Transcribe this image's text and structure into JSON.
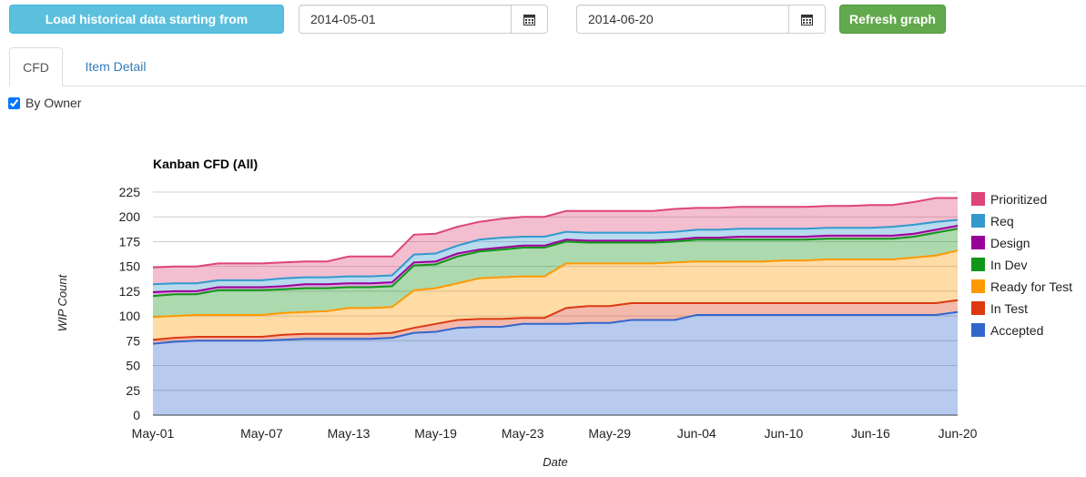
{
  "controls": {
    "load_button": "Load historical data starting from",
    "start_date": "2014-05-01",
    "end_date": "2014-06-20",
    "refresh_button": "Refresh graph"
  },
  "tabs": [
    {
      "label": "CFD",
      "active": true
    },
    {
      "label": "Item Detail",
      "active": false
    }
  ],
  "by_owner": {
    "label": "By Owner",
    "checked": true
  },
  "chart_data": {
    "type": "area",
    "stacked": true,
    "title": "Kanban CFD (All)",
    "xlabel": "Date",
    "ylabel": "WIP Count",
    "ylim": [
      0,
      225
    ],
    "yticks": [
      0,
      25,
      50,
      75,
      100,
      125,
      150,
      175,
      200,
      225
    ],
    "xticks": [
      "May-01",
      "May-07",
      "May-13",
      "May-19",
      "May-23",
      "May-29",
      "Jun-04",
      "Jun-10",
      "Jun-16",
      "Jun-20"
    ],
    "grid": true,
    "legend_position": "right",
    "x": [
      "May-01",
      "May-02",
      "May-03",
      "May-05",
      "May-06",
      "May-07",
      "May-08",
      "May-09",
      "May-12",
      "May-13",
      "May-14",
      "May-15",
      "May-16",
      "May-19",
      "May-20",
      "May-21",
      "May-22",
      "May-23",
      "May-26",
      "May-27",
      "May-28",
      "May-29",
      "May-30",
      "Jun-02",
      "Jun-03",
      "Jun-04",
      "Jun-05",
      "Jun-06",
      "Jun-09",
      "Jun-10",
      "Jun-11",
      "Jun-12",
      "Jun-13",
      "Jun-16",
      "Jun-17",
      "Jun-18",
      "Jun-19",
      "Jun-20"
    ],
    "series": [
      {
        "name": "Accepted",
        "color": "#3366cc",
        "values": [
          72,
          74,
          75,
          75,
          75,
          75,
          76,
          77,
          77,
          77,
          77,
          78,
          83,
          84,
          88,
          89,
          89,
          92,
          92,
          92,
          93,
          93,
          96,
          96,
          96,
          101,
          101,
          101,
          101,
          101,
          101,
          101,
          101,
          101,
          101,
          101,
          101,
          104
        ]
      },
      {
        "name": "In Test",
        "color": "#dc3912",
        "values": [
          76,
          78,
          79,
          79,
          79,
          79,
          81,
          82,
          82,
          82,
          82,
          83,
          88,
          92,
          96,
          97,
          97,
          98,
          98,
          108,
          110,
          110,
          113,
          113,
          113,
          113,
          113,
          113,
          113,
          113,
          113,
          113,
          113,
          113,
          113,
          113,
          113,
          116
        ]
      },
      {
        "name": "Ready for Test",
        "color": "#ff9900",
        "values": [
          99,
          100,
          101,
          101,
          101,
          101,
          103,
          104,
          105,
          108,
          108,
          109,
          126,
          128,
          133,
          138,
          139,
          140,
          140,
          153,
          153,
          153,
          153,
          153,
          154,
          155,
          155,
          155,
          155,
          156,
          156,
          157,
          157,
          157,
          157,
          159,
          161,
          166
        ]
      },
      {
        "name": "In Dev",
        "color": "#109618",
        "values": [
          120,
          122,
          122,
          126,
          126,
          126,
          127,
          128,
          128,
          129,
          129,
          130,
          151,
          152,
          160,
          165,
          167,
          169,
          169,
          175,
          174,
          174,
          174,
          174,
          175,
          177,
          177,
          177,
          177,
          177,
          177,
          178,
          178,
          178,
          178,
          180,
          184,
          188
        ]
      },
      {
        "name": "Design",
        "color": "#990099",
        "values": [
          124,
          125,
          125,
          129,
          129,
          129,
          130,
          132,
          132,
          133,
          133,
          134,
          154,
          155,
          163,
          167,
          169,
          171,
          171,
          177,
          176,
          176,
          176,
          176,
          177,
          179,
          179,
          180,
          180,
          180,
          180,
          181,
          181,
          181,
          181,
          183,
          187,
          191
        ]
      },
      {
        "name": "Req",
        "color": "#3399cc",
        "values": [
          132,
          133,
          133,
          136,
          136,
          136,
          138,
          139,
          139,
          140,
          140,
          141,
          162,
          163,
          171,
          177,
          179,
          180,
          180,
          185,
          184,
          184,
          184,
          184,
          185,
          187,
          187,
          188,
          188,
          188,
          188,
          189,
          189,
          189,
          190,
          192,
          195,
          197
        ]
      },
      {
        "name": "Prioritized",
        "color": "#dd4477",
        "values": [
          149,
          150,
          150,
          153,
          153,
          153,
          154,
          155,
          155,
          160,
          160,
          160,
          182,
          183,
          190,
          195,
          198,
          200,
          200,
          206,
          206,
          206,
          206,
          206,
          208,
          209,
          209,
          210,
          210,
          210,
          210,
          211,
          211,
          212,
          212,
          215,
          219,
          219
        ]
      }
    ]
  }
}
